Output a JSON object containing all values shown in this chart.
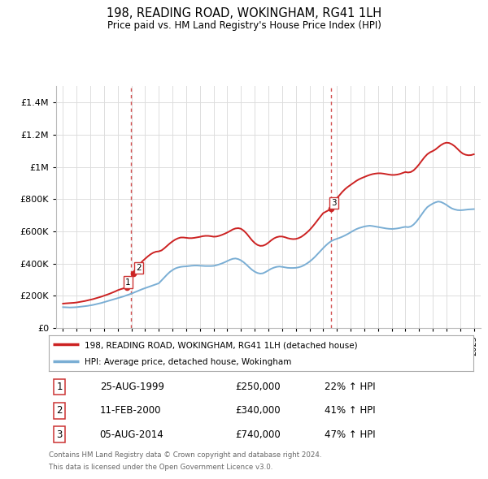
{
  "title": "198, READING ROAD, WOKINGHAM, RG41 1LH",
  "subtitle": "Price paid vs. HM Land Registry's House Price Index (HPI)",
  "footnote1": "Contains HM Land Registry data © Crown copyright and database right 2024.",
  "footnote2": "This data is licensed under the Open Government Licence v3.0.",
  "legend_red": "198, READING ROAD, WOKINGHAM, RG41 1LH (detached house)",
  "legend_blue": "HPI: Average price, detached house, Wokingham",
  "transactions": [
    {
      "num": 1,
      "date": "25-AUG-1999",
      "price": 250000,
      "pct": "22%",
      "dir": "↑",
      "ref": "HPI"
    },
    {
      "num": 2,
      "date": "11-FEB-2000",
      "price": 340000,
      "pct": "41%",
      "dir": "↑",
      "ref": "HPI"
    },
    {
      "num": 3,
      "date": "05-AUG-2014",
      "price": 740000,
      "pct": "47%",
      "dir": "↑",
      "ref": "HPI"
    }
  ],
  "hpi_color": "#7aaed4",
  "price_color": "#cc2222",
  "dot_color": "#cc2222",
  "vline_color": "#cc3333",
  "grid_color": "#dddddd",
  "bg_color": "#ffffff",
  "ylim": [
    0,
    1500000
  ],
  "yticks": [
    0,
    200000,
    400000,
    600000,
    800000,
    1000000,
    1200000,
    1400000
  ],
  "xlim_start": 1994.5,
  "xlim_end": 2025.5,
  "hpi_data": [
    [
      1995.0,
      130000
    ],
    [
      1995.1,
      129500
    ],
    [
      1995.2,
      129000
    ],
    [
      1995.3,
      128500
    ],
    [
      1995.4,
      128200
    ],
    [
      1995.5,
      128000
    ],
    [
      1995.6,
      128200
    ],
    [
      1995.7,
      128500
    ],
    [
      1995.8,
      129000
    ],
    [
      1995.9,
      129500
    ],
    [
      1996.0,
      130000
    ],
    [
      1996.2,
      132000
    ],
    [
      1996.4,
      134000
    ],
    [
      1996.6,
      136000
    ],
    [
      1996.8,
      138000
    ],
    [
      1997.0,
      141000
    ],
    [
      1997.2,
      144000
    ],
    [
      1997.4,
      148000
    ],
    [
      1997.6,
      152000
    ],
    [
      1997.8,
      156000
    ],
    [
      1998.0,
      161000
    ],
    [
      1998.2,
      166000
    ],
    [
      1998.4,
      171000
    ],
    [
      1998.6,
      176000
    ],
    [
      1998.8,
      181000
    ],
    [
      1999.0,
      186000
    ],
    [
      1999.2,
      191000
    ],
    [
      1999.4,
      196000
    ],
    [
      1999.6,
      202000
    ],
    [
      1999.8,
      208000
    ],
    [
      2000.0,
      214000
    ],
    [
      2000.2,
      221000
    ],
    [
      2000.4,
      228000
    ],
    [
      2000.6,
      235000
    ],
    [
      2000.8,
      242000
    ],
    [
      2001.0,
      248000
    ],
    [
      2001.2,
      254000
    ],
    [
      2001.4,
      260000
    ],
    [
      2001.6,
      266000
    ],
    [
      2001.8,
      272000
    ],
    [
      2002.0,
      278000
    ],
    [
      2002.2,
      296000
    ],
    [
      2002.4,
      314000
    ],
    [
      2002.6,
      332000
    ],
    [
      2002.8,
      348000
    ],
    [
      2003.0,
      360000
    ],
    [
      2003.2,
      370000
    ],
    [
      2003.4,
      376000
    ],
    [
      2003.6,
      380000
    ],
    [
      2003.8,
      382000
    ],
    [
      2004.0,
      383000
    ],
    [
      2004.2,
      385000
    ],
    [
      2004.4,
      387000
    ],
    [
      2004.6,
      388000
    ],
    [
      2004.8,
      388000
    ],
    [
      2005.0,
      387000
    ],
    [
      2005.2,
      386000
    ],
    [
      2005.4,
      385000
    ],
    [
      2005.6,
      385000
    ],
    [
      2005.8,
      385000
    ],
    [
      2006.0,
      386000
    ],
    [
      2006.2,
      390000
    ],
    [
      2006.4,
      395000
    ],
    [
      2006.6,
      401000
    ],
    [
      2006.8,
      408000
    ],
    [
      2007.0,
      416000
    ],
    [
      2007.2,
      424000
    ],
    [
      2007.4,
      430000
    ],
    [
      2007.6,
      432000
    ],
    [
      2007.8,
      428000
    ],
    [
      2008.0,
      420000
    ],
    [
      2008.2,
      408000
    ],
    [
      2008.4,
      393000
    ],
    [
      2008.6,
      377000
    ],
    [
      2008.8,
      362000
    ],
    [
      2009.0,
      350000
    ],
    [
      2009.2,
      342000
    ],
    [
      2009.4,
      338000
    ],
    [
      2009.6,
      340000
    ],
    [
      2009.8,
      348000
    ],
    [
      2010.0,
      358000
    ],
    [
      2010.2,
      368000
    ],
    [
      2010.4,
      375000
    ],
    [
      2010.6,
      380000
    ],
    [
      2010.8,
      382000
    ],
    [
      2011.0,
      380000
    ],
    [
      2011.2,
      377000
    ],
    [
      2011.4,
      374000
    ],
    [
      2011.6,
      373000
    ],
    [
      2011.8,
      373000
    ],
    [
      2012.0,
      374000
    ],
    [
      2012.2,
      377000
    ],
    [
      2012.4,
      382000
    ],
    [
      2012.6,
      390000
    ],
    [
      2012.8,
      400000
    ],
    [
      2013.0,
      412000
    ],
    [
      2013.2,
      426000
    ],
    [
      2013.4,
      442000
    ],
    [
      2013.6,
      460000
    ],
    [
      2013.8,
      478000
    ],
    [
      2014.0,
      496000
    ],
    [
      2014.2,
      513000
    ],
    [
      2014.4,
      528000
    ],
    [
      2014.6,
      540000
    ],
    [
      2014.8,
      548000
    ],
    [
      2015.0,
      554000
    ],
    [
      2015.2,
      560000
    ],
    [
      2015.4,
      567000
    ],
    [
      2015.6,
      575000
    ],
    [
      2015.8,
      584000
    ],
    [
      2016.0,
      594000
    ],
    [
      2016.2,
      604000
    ],
    [
      2016.4,
      613000
    ],
    [
      2016.6,
      620000
    ],
    [
      2016.8,
      625000
    ],
    [
      2017.0,
      630000
    ],
    [
      2017.2,
      633000
    ],
    [
      2017.4,
      635000
    ],
    [
      2017.6,
      633000
    ],
    [
      2017.8,
      630000
    ],
    [
      2018.0,
      627000
    ],
    [
      2018.2,
      624000
    ],
    [
      2018.4,
      621000
    ],
    [
      2018.6,
      618000
    ],
    [
      2018.8,
      616000
    ],
    [
      2019.0,
      615000
    ],
    [
      2019.2,
      616000
    ],
    [
      2019.4,
      618000
    ],
    [
      2019.6,
      621000
    ],
    [
      2019.8,
      625000
    ],
    [
      2020.0,
      628000
    ],
    [
      2020.2,
      626000
    ],
    [
      2020.4,
      630000
    ],
    [
      2020.6,
      642000
    ],
    [
      2020.8,
      660000
    ],
    [
      2021.0,
      682000
    ],
    [
      2021.2,
      706000
    ],
    [
      2021.4,
      730000
    ],
    [
      2021.6,
      750000
    ],
    [
      2021.8,
      762000
    ],
    [
      2022.0,
      772000
    ],
    [
      2022.2,
      780000
    ],
    [
      2022.4,
      785000
    ],
    [
      2022.6,
      782000
    ],
    [
      2022.8,
      774000
    ],
    [
      2023.0,
      764000
    ],
    [
      2023.2,
      752000
    ],
    [
      2023.4,
      742000
    ],
    [
      2023.6,
      736000
    ],
    [
      2023.8,
      732000
    ],
    [
      2024.0,
      731000
    ],
    [
      2024.2,
      732000
    ],
    [
      2024.4,
      734000
    ],
    [
      2024.6,
      736000
    ],
    [
      2024.8,
      737000
    ],
    [
      2025.0,
      738000
    ]
  ],
  "price_data": [
    [
      1995.0,
      152000
    ],
    [
      1995.1,
      153000
    ],
    [
      1995.2,
      153500
    ],
    [
      1995.3,
      154000
    ],
    [
      1995.4,
      154500
    ],
    [
      1995.5,
      155000
    ],
    [
      1995.6,
      155500
    ],
    [
      1995.7,
      156000
    ],
    [
      1995.8,
      157000
    ],
    [
      1995.9,
      158000
    ],
    [
      1996.0,
      159000
    ],
    [
      1996.2,
      162000
    ],
    [
      1996.4,
      165000
    ],
    [
      1996.6,
      168000
    ],
    [
      1996.8,
      172000
    ],
    [
      1997.0,
      176000
    ],
    [
      1997.2,
      180000
    ],
    [
      1997.4,
      185000
    ],
    [
      1997.6,
      190000
    ],
    [
      1997.8,
      195000
    ],
    [
      1998.0,
      201000
    ],
    [
      1998.2,
      207000
    ],
    [
      1998.4,
      213000
    ],
    [
      1998.6,
      220000
    ],
    [
      1998.8,
      227000
    ],
    [
      1999.0,
      235000
    ],
    [
      1999.2,
      241000
    ],
    [
      1999.4,
      246000
    ],
    [
      1999.6,
      250000
    ],
    [
      1999.8,
      252000
    ],
    [
      1999.648,
      250000
    ],
    [
      2000.1,
      340000
    ],
    [
      2000.2,
      355000
    ],
    [
      2000.4,
      375000
    ],
    [
      2000.6,
      395000
    ],
    [
      2000.8,
      415000
    ],
    [
      2001.0,
      430000
    ],
    [
      2001.2,
      445000
    ],
    [
      2001.4,
      458000
    ],
    [
      2001.6,
      468000
    ],
    [
      2001.8,
      474000
    ],
    [
      2002.0,
      476000
    ],
    [
      2002.2,
      482000
    ],
    [
      2002.4,
      495000
    ],
    [
      2002.6,
      510000
    ],
    [
      2002.8,
      525000
    ],
    [
      2003.0,
      538000
    ],
    [
      2003.2,
      549000
    ],
    [
      2003.4,
      557000
    ],
    [
      2003.6,
      562000
    ],
    [
      2003.8,
      562000
    ],
    [
      2004.0,
      560000
    ],
    [
      2004.2,
      558000
    ],
    [
      2004.4,
      558000
    ],
    [
      2004.6,
      560000
    ],
    [
      2004.8,
      563000
    ],
    [
      2005.0,
      566000
    ],
    [
      2005.2,
      570000
    ],
    [
      2005.4,
      572000
    ],
    [
      2005.6,
      572000
    ],
    [
      2005.8,
      570000
    ],
    [
      2006.0,
      567000
    ],
    [
      2006.2,
      568000
    ],
    [
      2006.4,
      572000
    ],
    [
      2006.6,
      578000
    ],
    [
      2006.8,
      585000
    ],
    [
      2007.0,
      593000
    ],
    [
      2007.2,
      602000
    ],
    [
      2007.4,
      612000
    ],
    [
      2007.6,
      618000
    ],
    [
      2007.8,
      620000
    ],
    [
      2008.0,
      616000
    ],
    [
      2008.2,
      604000
    ],
    [
      2008.4,
      587000
    ],
    [
      2008.6,
      566000
    ],
    [
      2008.8,
      545000
    ],
    [
      2009.0,
      528000
    ],
    [
      2009.2,
      516000
    ],
    [
      2009.4,
      510000
    ],
    [
      2009.6,
      511000
    ],
    [
      2009.8,
      518000
    ],
    [
      2010.0,
      530000
    ],
    [
      2010.2,
      544000
    ],
    [
      2010.4,
      556000
    ],
    [
      2010.6,
      564000
    ],
    [
      2010.8,
      568000
    ],
    [
      2011.0,
      568000
    ],
    [
      2011.2,
      564000
    ],
    [
      2011.4,
      558000
    ],
    [
      2011.6,
      554000
    ],
    [
      2011.8,
      552000
    ],
    [
      2012.0,
      553000
    ],
    [
      2012.2,
      558000
    ],
    [
      2012.4,
      566000
    ],
    [
      2012.6,
      578000
    ],
    [
      2012.8,
      592000
    ],
    [
      2013.0,
      608000
    ],
    [
      2013.2,
      627000
    ],
    [
      2013.4,
      648000
    ],
    [
      2013.6,
      670000
    ],
    [
      2013.8,
      692000
    ],
    [
      2014.0,
      713000
    ],
    [
      2014.589,
      740000
    ],
    [
      2014.7,
      762000
    ],
    [
      2014.9,
      785000
    ],
    [
      2015.0,
      805000
    ],
    [
      2015.2,
      825000
    ],
    [
      2015.4,
      845000
    ],
    [
      2015.6,
      862000
    ],
    [
      2015.8,
      876000
    ],
    [
      2016.0,
      888000
    ],
    [
      2016.2,
      900000
    ],
    [
      2016.4,
      912000
    ],
    [
      2016.6,
      922000
    ],
    [
      2016.8,
      930000
    ],
    [
      2017.0,
      937000
    ],
    [
      2017.2,
      944000
    ],
    [
      2017.4,
      950000
    ],
    [
      2017.6,
      955000
    ],
    [
      2017.8,
      958000
    ],
    [
      2018.0,
      960000
    ],
    [
      2018.2,
      960000
    ],
    [
      2018.4,
      958000
    ],
    [
      2018.6,
      955000
    ],
    [
      2018.8,
      952000
    ],
    [
      2019.0,
      950000
    ],
    [
      2019.2,
      950000
    ],
    [
      2019.4,
      952000
    ],
    [
      2019.6,
      956000
    ],
    [
      2019.8,
      962000
    ],
    [
      2020.0,
      968000
    ],
    [
      2020.2,
      965000
    ],
    [
      2020.4,
      968000
    ],
    [
      2020.6,
      978000
    ],
    [
      2020.8,
      995000
    ],
    [
      2021.0,
      1015000
    ],
    [
      2021.2,
      1038000
    ],
    [
      2021.4,
      1060000
    ],
    [
      2021.6,
      1078000
    ],
    [
      2021.8,
      1090000
    ],
    [
      2022.0,
      1098000
    ],
    [
      2022.2,
      1108000
    ],
    [
      2022.4,
      1122000
    ],
    [
      2022.6,
      1135000
    ],
    [
      2022.8,
      1145000
    ],
    [
      2023.0,
      1150000
    ],
    [
      2023.2,
      1148000
    ],
    [
      2023.4,
      1140000
    ],
    [
      2023.6,
      1128000
    ],
    [
      2023.8,
      1112000
    ],
    [
      2024.0,
      1095000
    ],
    [
      2024.2,
      1082000
    ],
    [
      2024.4,
      1075000
    ],
    [
      2024.6,
      1072000
    ],
    [
      2024.8,
      1073000
    ],
    [
      2025.0,
      1078000
    ]
  ],
  "transaction_dates": [
    1999.648,
    2000.121,
    2014.589
  ],
  "transaction_prices": [
    250000,
    340000,
    740000
  ],
  "transaction_labels": [
    "1",
    "2",
    "3"
  ],
  "vline_dates": [
    1999.95,
    2014.583
  ]
}
